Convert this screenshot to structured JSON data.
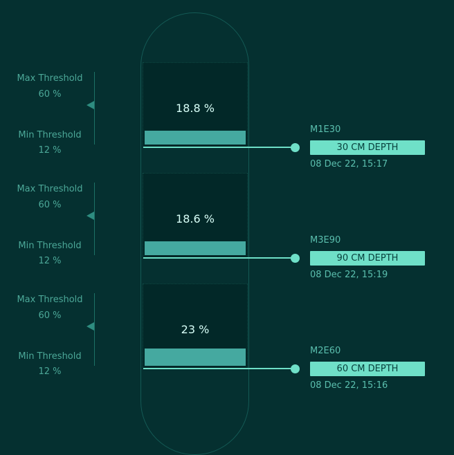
{
  "sensors": [
    {
      "reading": "18.8 %",
      "level": 0.188,
      "max_label": "Max Threshold",
      "max_value": "60 %",
      "min_label": "Min Threshold",
      "min_value": "12 %",
      "id": "M1E30",
      "depth": "30 CM DEPTH",
      "timestamp": "08 Dec 22, 15:17"
    },
    {
      "reading": "18.6 %",
      "level": 0.186,
      "max_label": "Max Threshold",
      "max_value": "60 %",
      "min_label": "Min Threshold",
      "min_value": "12 %",
      "id": "M3E90",
      "depth": "90 CM DEPTH",
      "timestamp": "08 Dec 22, 15:19"
    },
    {
      "reading": "23 %",
      "level": 0.23,
      "max_label": "Max Threshold",
      "max_value": "60 %",
      "min_label": "Min Threshold",
      "min_value": "12 %",
      "id": "M2E60",
      "depth": "60 CM DEPTH",
      "timestamp": "08 Dec 22, 15:16"
    }
  ],
  "colors": {
    "background": "#053030",
    "accent": "#6fe0c8",
    "fill": "#45a9a0",
    "muted_text": "#4ca898"
  }
}
